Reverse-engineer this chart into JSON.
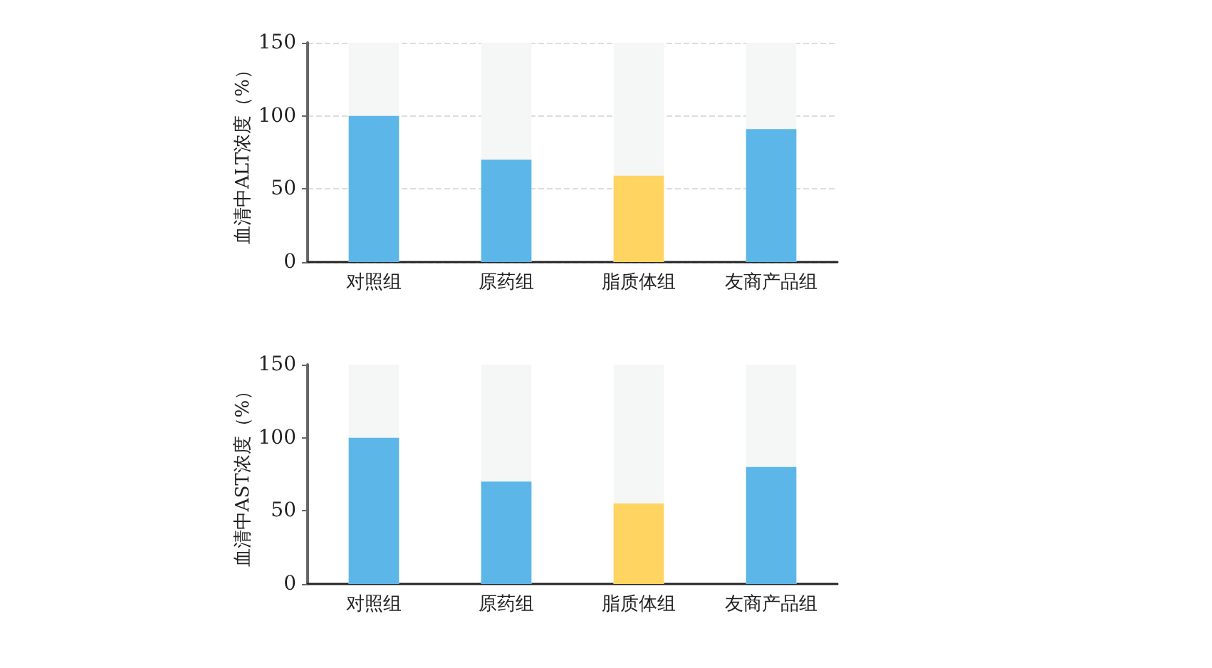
{
  "chart_data": [
    {
      "type": "bar",
      "ylabel": "血清中ALT浓度（%）",
      "categories": [
        "对照组",
        "原药组",
        "脂质体组",
        "友商产品组"
      ],
      "values": [
        100,
        70,
        59,
        91
      ],
      "colors": [
        "#5db6e8",
        "#5db6e8",
        "#ffd460",
        "#5db6e8"
      ],
      "ylim": [
        0,
        150
      ],
      "yticks": [
        0,
        50,
        100,
        150
      ],
      "grid": "y"
    },
    {
      "type": "bar",
      "ylabel": "血清中AST浓度（%）",
      "categories": [
        "对照组",
        "原药组",
        "脂质体组",
        "友商产品组"
      ],
      "values": [
        100,
        70,
        55,
        80
      ],
      "colors": [
        "#5db6e8",
        "#5db6e8",
        "#ffd460",
        "#5db6e8"
      ],
      "ylim": [
        0,
        150
      ],
      "yticks": [
        0,
        50,
        100,
        150
      ],
      "grid": false
    }
  ]
}
